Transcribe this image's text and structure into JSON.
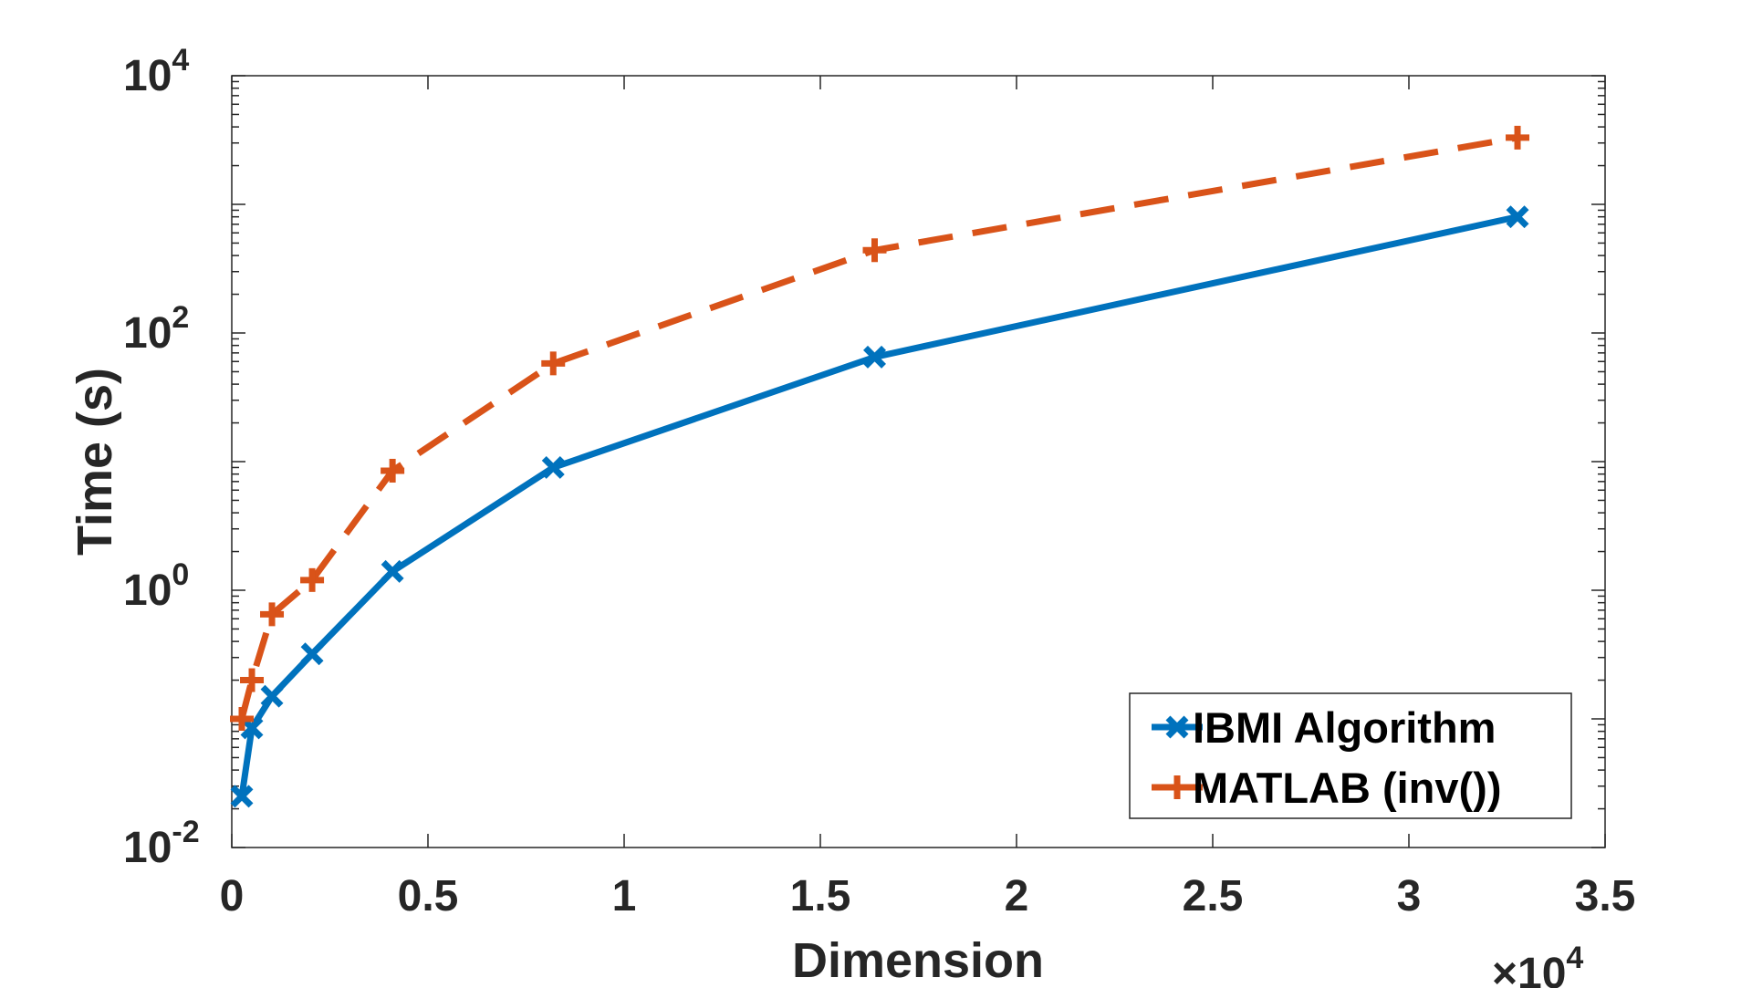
{
  "chart_data": {
    "type": "line",
    "xlabel": "Dimension",
    "ylabel": "Time (s)",
    "x_multiplier": "×10",
    "x_multiplier_exp": "4",
    "xlim": [
      0,
      35000
    ],
    "ylim": [
      0.01,
      10000
    ],
    "yscale": "log",
    "x_ticks": [
      {
        "value": 0,
        "label": "0"
      },
      {
        "value": 5000,
        "label": "0.5"
      },
      {
        "value": 10000,
        "label": "1"
      },
      {
        "value": 15000,
        "label": "1.5"
      },
      {
        "value": 20000,
        "label": "2"
      },
      {
        "value": 25000,
        "label": "2.5"
      },
      {
        "value": 30000,
        "label": "3"
      },
      {
        "value": 35000,
        "label": "3.5"
      }
    ],
    "y_ticks": [
      {
        "value": 0.01,
        "base": "10",
        "exp": "-2"
      },
      {
        "value": 1,
        "base": "10",
        "exp": "0"
      },
      {
        "value": 100,
        "base": "10",
        "exp": "2"
      },
      {
        "value": 10000,
        "base": "10",
        "exp": "4"
      }
    ],
    "grid": false,
    "legend_position": "bottom-right",
    "x": [
      256,
      512,
      1024,
      2048,
      4096,
      8192,
      16384,
      32768
    ],
    "series": [
      {
        "name": "IBMI Algorithm",
        "color": "#0072BD",
        "marker": "x",
        "dash": "solid",
        "values": [
          0.025,
          0.085,
          0.15,
          0.32,
          1.4,
          9.0,
          65,
          800
        ]
      },
      {
        "name": "MATLAB (inv())",
        "color": "#D95319",
        "marker": "+",
        "dash": "dashed",
        "values": [
          0.1,
          0.2,
          0.65,
          1.2,
          8.5,
          58,
          440,
          3300
        ]
      }
    ]
  }
}
